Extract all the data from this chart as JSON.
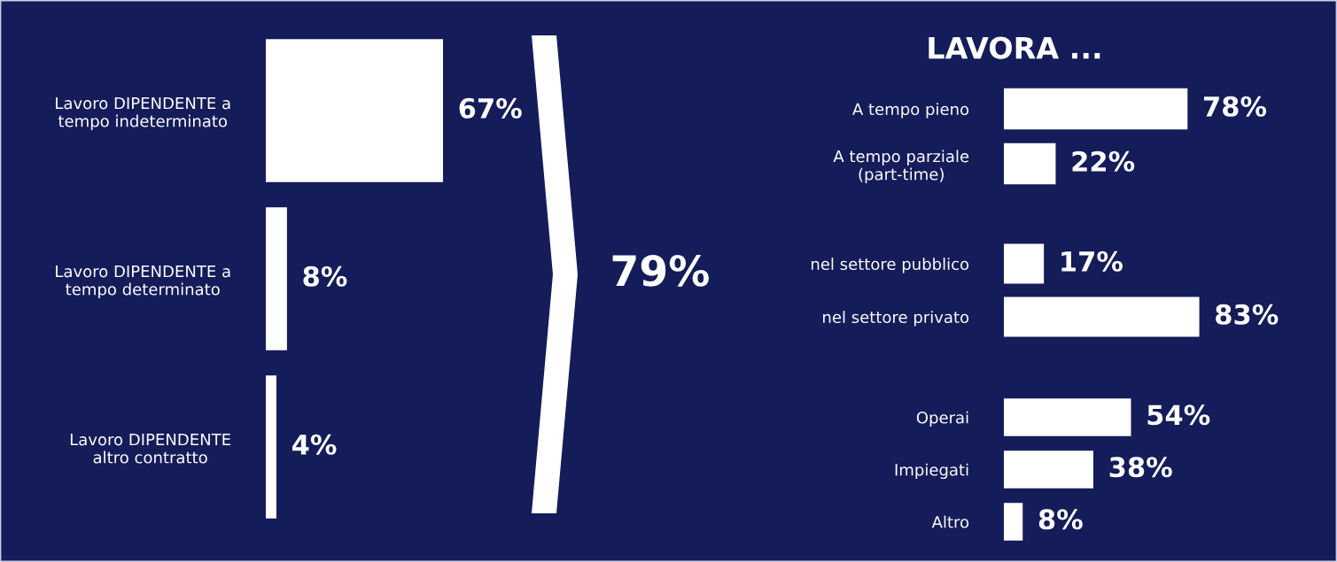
{
  "chart_data": [
    {
      "type": "bar",
      "orientation": "horizontal",
      "categories": [
        "Lavoro DIPENDENTE a\ntempo indeterminato",
        "Lavoro DIPENDENTE a\ntempo determinato",
        "Lavoro DIPENDENTE\naltro contratto"
      ],
      "values": [
        67,
        8,
        4
      ],
      "color": "#ffffff",
      "value_labels": [
        "67%",
        "8%",
        "4%"
      ],
      "annotations": [
        "79%"
      ]
    },
    {
      "type": "bar",
      "orientation": "horizontal",
      "title": "LAVORA ...",
      "categories": [
        "A tempo pieno",
        "A tempo parziale\n(part-time)"
      ],
      "values": [
        78,
        22
      ],
      "color": "#ffffff",
      "value_labels": [
        "78%",
        "22%"
      ]
    },
    {
      "type": "bar",
      "orientation": "horizontal",
      "categories": [
        "nel settore pubblico",
        "nel settore privato"
      ],
      "values": [
        17,
        83
      ],
      "color": "#ffffff",
      "value_labels": [
        "17%",
        "83%"
      ]
    },
    {
      "type": "bar",
      "orientation": "horizontal",
      "categories": [
        "Operai",
        "Impiegati",
        "Altro"
      ],
      "values": [
        54,
        38,
        8
      ],
      "color": "#ffffff",
      "value_labels": [
        "54%",
        "38%",
        "8%"
      ]
    }
  ]
}
